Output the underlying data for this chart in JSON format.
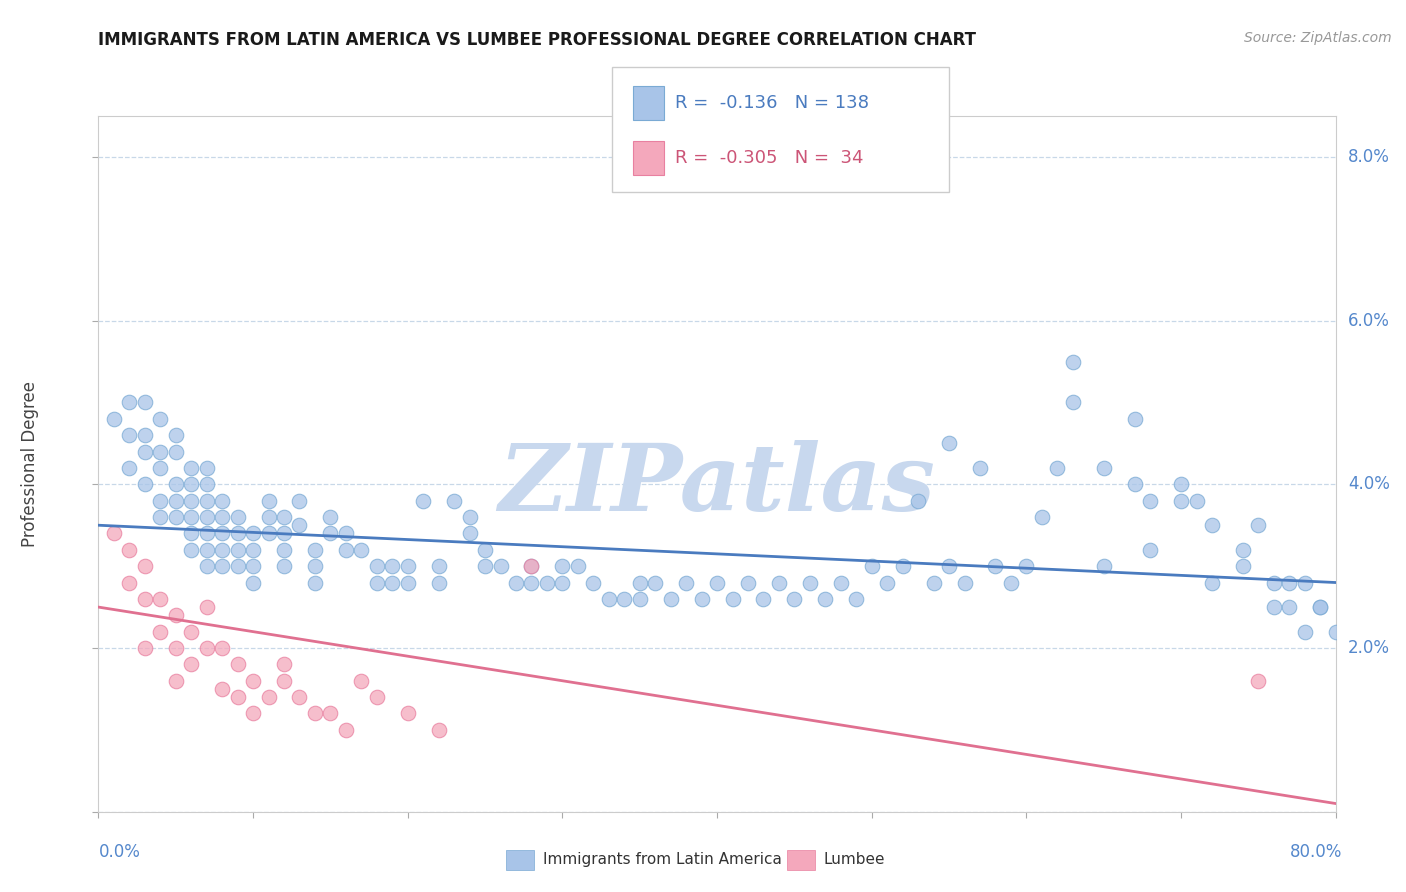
{
  "title": "IMMIGRANTS FROM LATIN AMERICA VS LUMBEE PROFESSIONAL DEGREE CORRELATION CHART",
  "source_text": "Source: ZipAtlas.com",
  "ylabel": "Professional Degree",
  "xmin": 0.0,
  "xmax": 0.8,
  "ymin": 0.0,
  "ymax": 0.085,
  "blue_R": -0.136,
  "blue_N": 138,
  "pink_R": -0.305,
  "pink_N": 34,
  "blue_color": "#a8c4e8",
  "pink_color": "#f4a8bc",
  "blue_edge_color": "#7aaad4",
  "pink_edge_color": "#e880a0",
  "blue_line_color": "#4a7bbf",
  "pink_line_color": "#e07090",
  "watermark": "ZIPatlas",
  "watermark_color_r": 200,
  "watermark_color_g": 215,
  "watermark_color_b": 235,
  "legend_blue_label": "Immigrants from Latin America",
  "legend_pink_label": "Lumbee",
  "background_color": "#ffffff",
  "ytick_vals": [
    0.0,
    0.02,
    0.04,
    0.06,
    0.08
  ],
  "ytick_labels": [
    "",
    "2.0%",
    "4.0%",
    "6.0%",
    "8.0%"
  ],
  "blue_trend_y_start": 0.035,
  "blue_trend_y_end": 0.028,
  "pink_trend_y_start": 0.025,
  "pink_trend_y_end": 0.001,
  "blue_scatter_x": [
    0.01,
    0.02,
    0.02,
    0.02,
    0.03,
    0.03,
    0.03,
    0.03,
    0.04,
    0.04,
    0.04,
    0.04,
    0.04,
    0.05,
    0.05,
    0.05,
    0.05,
    0.05,
    0.06,
    0.06,
    0.06,
    0.06,
    0.06,
    0.06,
    0.07,
    0.07,
    0.07,
    0.07,
    0.07,
    0.07,
    0.07,
    0.08,
    0.08,
    0.08,
    0.08,
    0.08,
    0.09,
    0.09,
    0.09,
    0.09,
    0.1,
    0.1,
    0.1,
    0.1,
    0.11,
    0.11,
    0.11,
    0.12,
    0.12,
    0.12,
    0.12,
    0.13,
    0.13,
    0.14,
    0.14,
    0.14,
    0.15,
    0.15,
    0.16,
    0.16,
    0.17,
    0.18,
    0.18,
    0.19,
    0.19,
    0.2,
    0.2,
    0.21,
    0.22,
    0.22,
    0.23,
    0.24,
    0.24,
    0.25,
    0.25,
    0.26,
    0.27,
    0.28,
    0.28,
    0.29,
    0.3,
    0.3,
    0.31,
    0.32,
    0.33,
    0.34,
    0.35,
    0.35,
    0.36,
    0.37,
    0.38,
    0.39,
    0.4,
    0.41,
    0.42,
    0.43,
    0.44,
    0.45,
    0.46,
    0.47,
    0.48,
    0.49,
    0.5,
    0.51,
    0.52,
    0.54,
    0.55,
    0.56,
    0.58,
    0.59,
    0.6,
    0.61,
    0.63,
    0.65,
    0.67,
    0.68,
    0.7,
    0.72,
    0.74,
    0.76,
    0.78,
    0.79,
    0.55,
    0.62,
    0.7,
    0.75,
    0.77,
    0.53,
    0.57,
    0.65,
    0.68,
    0.72,
    0.76,
    0.78,
    0.63,
    0.67,
    0.71,
    0.74,
    0.77,
    0.79,
    0.8
  ],
  "blue_scatter_y": [
    0.048,
    0.05,
    0.046,
    0.042,
    0.05,
    0.046,
    0.044,
    0.04,
    0.048,
    0.044,
    0.042,
    0.038,
    0.036,
    0.046,
    0.044,
    0.04,
    0.038,
    0.036,
    0.042,
    0.04,
    0.038,
    0.036,
    0.034,
    0.032,
    0.042,
    0.04,
    0.038,
    0.036,
    0.034,
    0.032,
    0.03,
    0.038,
    0.036,
    0.034,
    0.032,
    0.03,
    0.036,
    0.034,
    0.032,
    0.03,
    0.034,
    0.032,
    0.03,
    0.028,
    0.038,
    0.036,
    0.034,
    0.036,
    0.034,
    0.032,
    0.03,
    0.038,
    0.035,
    0.032,
    0.03,
    0.028,
    0.036,
    0.034,
    0.034,
    0.032,
    0.032,
    0.03,
    0.028,
    0.03,
    0.028,
    0.03,
    0.028,
    0.038,
    0.03,
    0.028,
    0.038,
    0.036,
    0.034,
    0.032,
    0.03,
    0.03,
    0.028,
    0.03,
    0.028,
    0.028,
    0.03,
    0.028,
    0.03,
    0.028,
    0.026,
    0.026,
    0.028,
    0.026,
    0.028,
    0.026,
    0.028,
    0.026,
    0.028,
    0.026,
    0.028,
    0.026,
    0.028,
    0.026,
    0.028,
    0.026,
    0.028,
    0.026,
    0.03,
    0.028,
    0.03,
    0.028,
    0.03,
    0.028,
    0.03,
    0.028,
    0.03,
    0.036,
    0.05,
    0.042,
    0.04,
    0.038,
    0.038,
    0.035,
    0.03,
    0.028,
    0.028,
    0.025,
    0.045,
    0.042,
    0.04,
    0.035,
    0.025,
    0.038,
    0.042,
    0.03,
    0.032,
    0.028,
    0.025,
    0.022,
    0.055,
    0.048,
    0.038,
    0.032,
    0.028,
    0.025,
    0.022
  ],
  "pink_scatter_x": [
    0.01,
    0.02,
    0.02,
    0.03,
    0.03,
    0.03,
    0.04,
    0.04,
    0.05,
    0.05,
    0.05,
    0.06,
    0.06,
    0.07,
    0.07,
    0.08,
    0.08,
    0.09,
    0.09,
    0.1,
    0.1,
    0.11,
    0.12,
    0.12,
    0.13,
    0.14,
    0.15,
    0.16,
    0.17,
    0.18,
    0.2,
    0.22,
    0.28,
    0.75
  ],
  "pink_scatter_y": [
    0.034,
    0.032,
    0.028,
    0.03,
    0.026,
    0.02,
    0.026,
    0.022,
    0.024,
    0.02,
    0.016,
    0.022,
    0.018,
    0.025,
    0.02,
    0.02,
    0.015,
    0.018,
    0.014,
    0.016,
    0.012,
    0.014,
    0.018,
    0.016,
    0.014,
    0.012,
    0.012,
    0.01,
    0.016,
    0.014,
    0.012,
    0.01,
    0.03,
    0.016
  ]
}
